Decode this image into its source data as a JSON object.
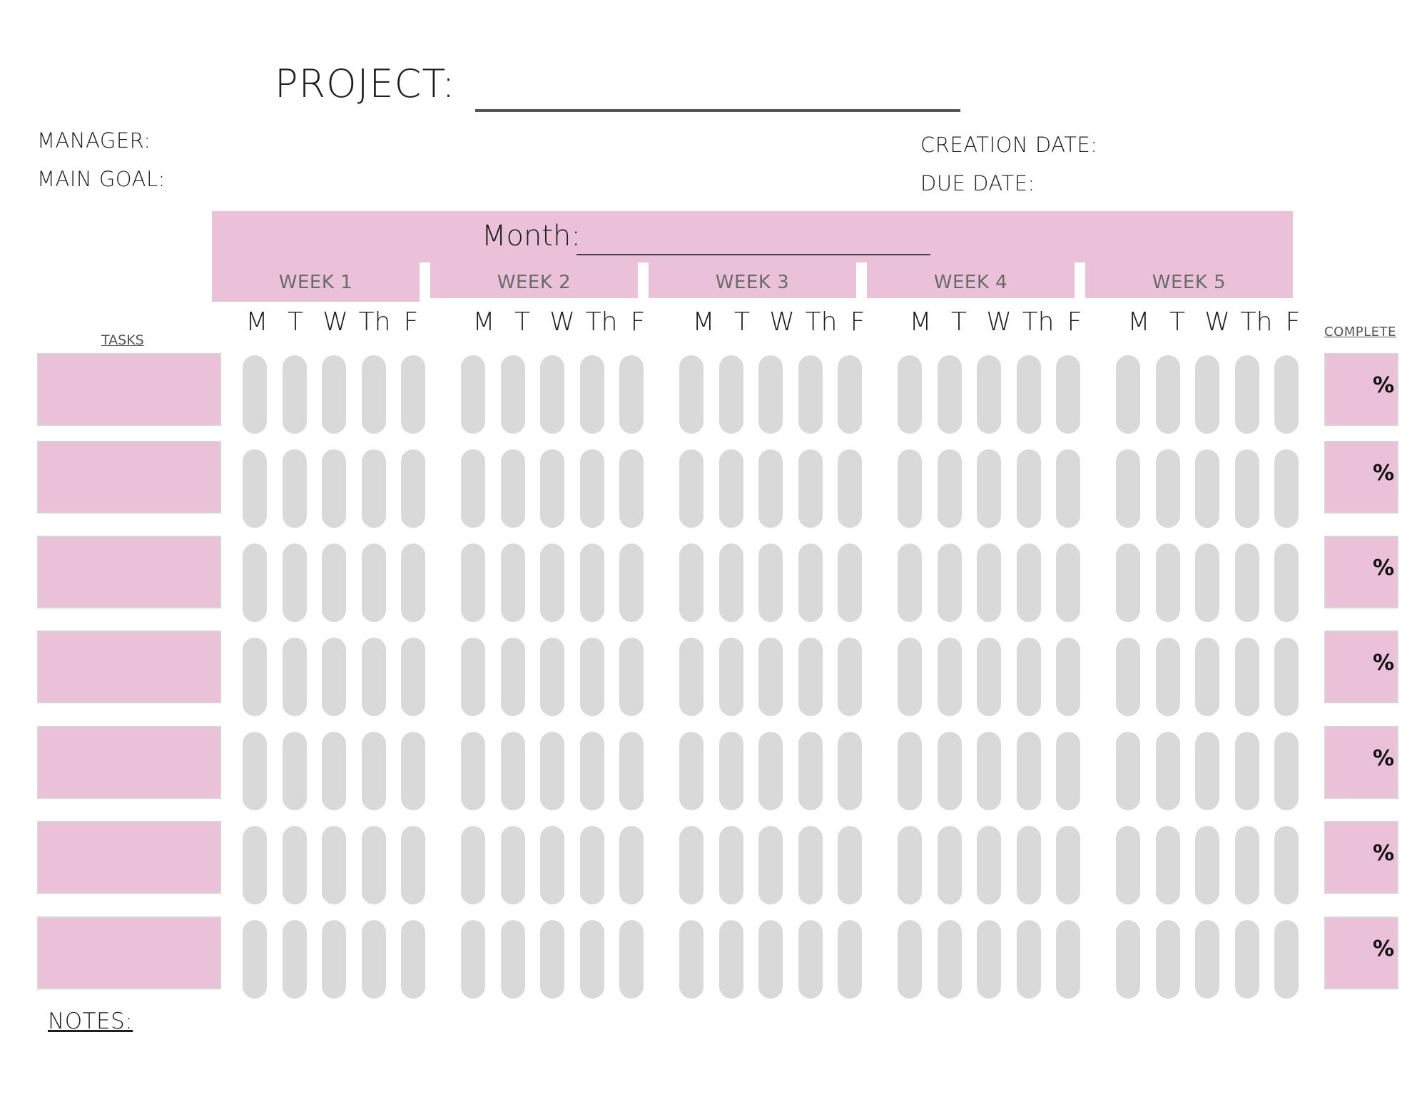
{
  "header": {
    "project_label": "PROJECT:",
    "manager_label": "MANAGER:",
    "main_goal_label": "MAIN GOAL:",
    "creation_date_label": "CREATION DATE:",
    "due_date_label": "DUE DATE:"
  },
  "calendar": {
    "month_label": "Month:",
    "weeks": [
      "WEEK 1",
      "WEEK 2",
      "WEEK 3",
      "WEEK 4",
      "WEEK 5"
    ],
    "days": [
      "M",
      "T",
      "W",
      "Th",
      "F"
    ]
  },
  "table": {
    "tasks_header": "TASKS",
    "complete_header": "COMPLETE",
    "row_count": 7,
    "percent_symbol": "%"
  },
  "notes_label": "NOTES:",
  "colors": {
    "pink": "#ebc1da",
    "pill_gray": "#d9d9d9",
    "text": "#1e1e1e"
  }
}
